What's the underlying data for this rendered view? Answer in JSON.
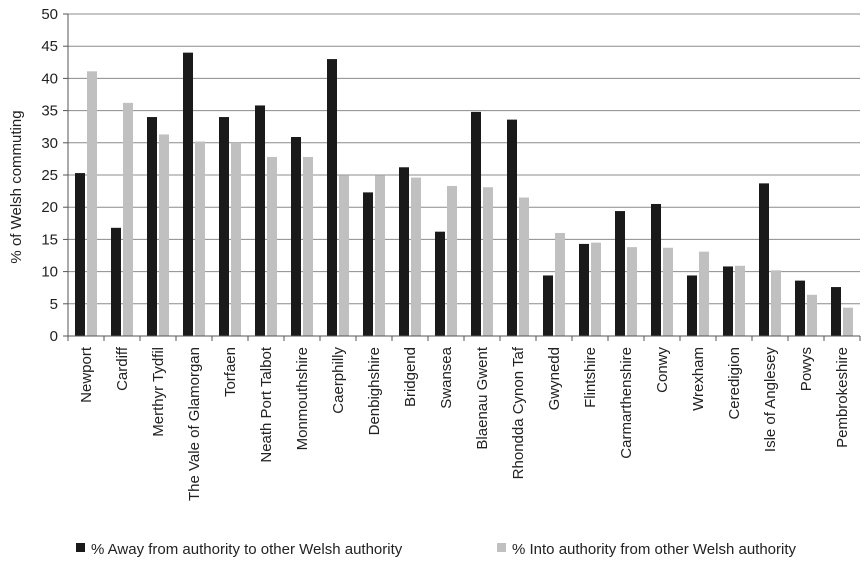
{
  "chart_data": {
    "type": "bar",
    "title": "",
    "xlabel": "",
    "ylabel": "% of Welsh commuting",
    "ylim": [
      0,
      50
    ],
    "yticks": [
      0,
      5,
      10,
      15,
      20,
      25,
      30,
      35,
      40,
      45,
      50
    ],
    "grid": true,
    "legend_position": "bottom",
    "categories": [
      "Newport",
      "Cardiff",
      "Merthyr Tydfil",
      "The Vale of Glamorgan",
      "Torfaen",
      "Neath Port Talbot",
      "Monmouthshire",
      "Caerphilly",
      "Denbighshire",
      "Bridgend",
      "Swansea",
      "Blaenau Gwent",
      "Rhondda Cynon Taf",
      "Gwynedd",
      "Flintshire",
      "Carmarthenshire",
      "Conwy",
      "Wrexham",
      "Ceredigion",
      "Isle of Anglesey",
      "Powys",
      "Pembrokeshire"
    ],
    "series": [
      {
        "name": "% Away from authority to other Welsh authority",
        "color": "#1a1a1a",
        "values": [
          25.3,
          16.8,
          34.0,
          44.0,
          34.0,
          35.8,
          30.9,
          43.0,
          22.3,
          26.2,
          16.2,
          34.8,
          33.6,
          9.4,
          14.3,
          19.4,
          20.5,
          9.4,
          10.8,
          23.7,
          8.6,
          7.6
        ]
      },
      {
        "name": "% Into authority from other Welsh authority",
        "color": "#c0c0c0",
        "values": [
          41.1,
          36.2,
          31.3,
          30.2,
          30.0,
          27.8,
          27.8,
          24.9,
          24.9,
          24.6,
          23.3,
          23.1,
          21.5,
          16.0,
          14.5,
          13.8,
          13.7,
          13.1,
          10.9,
          10.2,
          6.4,
          4.4
        ]
      }
    ]
  }
}
